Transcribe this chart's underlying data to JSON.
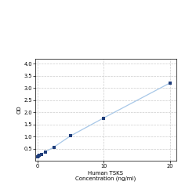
{
  "x": [
    0,
    0.156,
    0.313,
    0.625,
    1.25,
    2.5,
    5,
    10,
    20
  ],
  "y": [
    0.172,
    0.192,
    0.22,
    0.27,
    0.37,
    0.56,
    1.02,
    1.76,
    3.2
  ],
  "line_color": "#a8c8e8",
  "marker_color": "#1f3d7a",
  "marker_size": 3.5,
  "xlabel_line1": "Human TSKS",
  "xlabel_line2": "Concentration (ng/ml)",
  "ylabel": "OD",
  "xlim": [
    -0.3,
    21
  ],
  "ylim": [
    0,
    4.2
  ],
  "yticks": [
    0.5,
    1.0,
    1.5,
    2.0,
    2.5,
    3.0,
    3.5,
    4.0
  ],
  "xticks": [
    0,
    10,
    20
  ],
  "grid_color": "#cccccc",
  "bg_color": "#ffffff",
  "label_fontsize": 5.0,
  "tick_fontsize": 4.8
}
